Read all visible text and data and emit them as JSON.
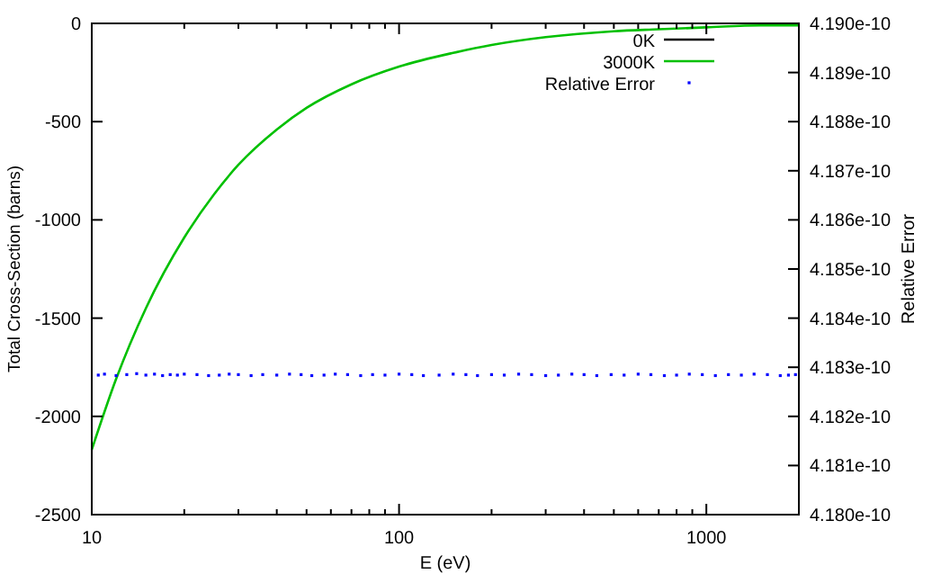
{
  "chart_data": {
    "type": "line",
    "xlabel": "E (eV)",
    "ylabel": "Total Cross-Section (barns)",
    "y2label": "Relative Error",
    "log": "x",
    "legend": "top right",
    "grid": false,
    "xlim": [
      10,
      2000
    ],
    "xticks": [
      10,
      {
        "value": 20,
        "label": null
      },
      {
        "value": 30,
        "label": null
      },
      {
        "value": 40,
        "label": null
      },
      {
        "value": 50,
        "label": null
      },
      {
        "value": 60,
        "label": null
      },
      {
        "value": 70,
        "label": null
      },
      {
        "value": 80,
        "label": null
      },
      {
        "value": 90,
        "label": null
      },
      100,
      {
        "value": 200,
        "label": null
      },
      {
        "value": 300,
        "label": null
      },
      {
        "value": 400,
        "label": null
      },
      {
        "value": 500,
        "label": null
      },
      {
        "value": 600,
        "label": null
      },
      {
        "value": 700,
        "label": null
      },
      {
        "value": 800,
        "label": null
      },
      {
        "value": 900,
        "label": null
      },
      1000,
      {
        "value": 2000,
        "label": null
      }
    ],
    "ylim": [
      -2500,
      0
    ],
    "yticks": [
      -2500,
      -2000,
      -1500,
      -1000,
      -500,
      0
    ],
    "y2lim": [
      4.18e-10,
      4.19e-10
    ],
    "y2ticks": [
      {
        "value": 4.18e-10,
        "label": "4.180e-10"
      },
      {
        "value": 4.181e-10,
        "label": "4.181e-10"
      },
      {
        "value": 4.182e-10,
        "label": "4.182e-10"
      },
      {
        "value": 4.183e-10,
        "label": "4.183e-10"
      },
      {
        "value": 4.184e-10,
        "label": "4.184e-10"
      },
      {
        "value": 4.185e-10,
        "label": "4.185e-10"
      },
      {
        "value": 4.186e-10,
        "label": "4.186e-10"
      },
      {
        "value": 4.187e-10,
        "label": "4.187e-10"
      },
      {
        "value": 4.188e-10,
        "label": "4.188e-10"
      },
      {
        "value": 4.189e-10,
        "label": "4.189e-10"
      },
      {
        "value": 4.19e-10,
        "label": "4.190e-10"
      }
    ],
    "series": [
      {
        "name": "0K",
        "color": "#000000"
      },
      {
        "name": "3000K",
        "color": "#00c000",
        "x": [
          10,
          12,
          15,
          20,
          25,
          30,
          40,
          50,
          70,
          100,
          150,
          200,
          300,
          500,
          700,
          1000,
          1500,
          2000
        ],
        "values": [
          -2170,
          -1810,
          -1450,
          -1090,
          -870,
          -720,
          -540,
          -430,
          -310,
          -220,
          -150,
          -110,
          -70,
          -40,
          -30,
          -20,
          -10,
          -10
        ]
      },
      {
        "name": "Relative Error",
        "color": "#0000ff",
        "type": "scatter",
        "axis": "y2",
        "marker": "square",
        "x": [
          10.5,
          11,
          12,
          13,
          14,
          15,
          16,
          17,
          18,
          19,
          20,
          22,
          24,
          26,
          28,
          30,
          33,
          36,
          40,
          44,
          48,
          52,
          57,
          62,
          68,
          75,
          82,
          90,
          100,
          110,
          120,
          135,
          150,
          165,
          180,
          200,
          220,
          245,
          270,
          300,
          330,
          365,
          400,
          440,
          490,
          540,
          600,
          660,
          730,
          800,
          880,
          970,
          1070,
          1180,
          1300,
          1430,
          1580,
          1740,
          1850,
          1950
        ],
        "values": [
          4.18284e-10,
          4.18286e-10,
          4.18283e-10,
          4.18285e-10,
          4.18287e-10,
          4.18284e-10,
          4.18286e-10,
          4.18283e-10,
          4.18285e-10,
          4.18284e-10,
          4.18286e-10,
          4.18285e-10,
          4.18283e-10,
          4.18284e-10,
          4.18286e-10,
          4.18285e-10,
          4.18283e-10,
          4.18285e-10,
          4.18284e-10,
          4.18286e-10,
          4.18285e-10,
          4.18283e-10,
          4.18284e-10,
          4.18286e-10,
          4.18285e-10,
          4.18283e-10,
          4.18285e-10,
          4.18284e-10,
          4.18286e-10,
          4.18285e-10,
          4.18283e-10,
          4.18284e-10,
          4.18286e-10,
          4.18285e-10,
          4.18283e-10,
          4.18285e-10,
          4.18284e-10,
          4.18286e-10,
          4.18285e-10,
          4.18283e-10,
          4.18284e-10,
          4.18286e-10,
          4.18285e-10,
          4.18283e-10,
          4.18285e-10,
          4.18284e-10,
          4.18286e-10,
          4.18285e-10,
          4.18283e-10,
          4.18284e-10,
          4.18286e-10,
          4.18285e-10,
          4.18283e-10,
          4.18285e-10,
          4.18284e-10,
          4.18286e-10,
          4.18285e-10,
          4.18283e-10,
          4.18284e-10,
          4.18285e-10
        ]
      }
    ]
  }
}
